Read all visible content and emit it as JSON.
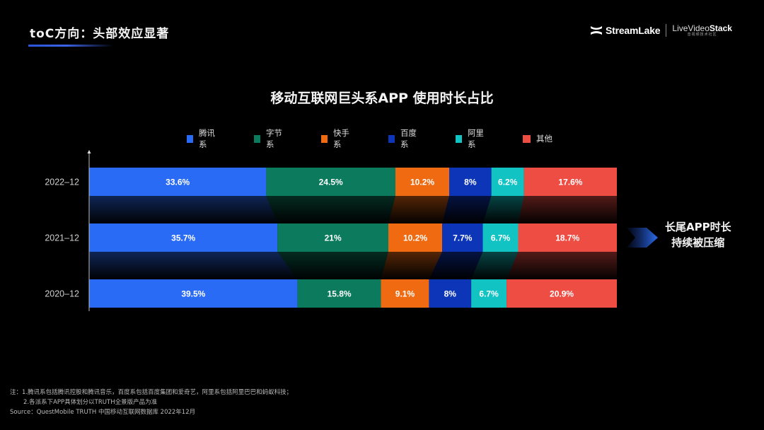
{
  "header": {
    "page_title": "toC方向：头部效应显著",
    "logo_streamlake": "StreamLake",
    "logo_livevideostack_prefix": "LiveVideo",
    "logo_livevideostack_suffix": "Stack",
    "logo_livevideostack_sub": "音视频技术社区"
  },
  "colors": {
    "腾讯系": "#2a6bf5",
    "字节系": "#0b7a5d",
    "快手系": "#f06a12",
    "百度系": "#0c35b8",
    "阿里系": "#12c3c3",
    "其他": "#ee4d44"
  },
  "chart_data": {
    "type": "bar",
    "orientation": "horizontal",
    "stacked": true,
    "normalized": true,
    "title": "移动互联网巨头系APP 使用时长占比",
    "xlabel": "",
    "ylabel": "",
    "xlim": [
      0,
      100
    ],
    "legend_position": "top",
    "categories": [
      "2022-12",
      "2021-12",
      "2020-12"
    ],
    "category_labels": [
      "2022–12",
      "2021–12",
      "2020–12"
    ],
    "series": [
      {
        "name": "腾讯系",
        "values": [
          33.6,
          35.7,
          39.5
        ],
        "labels": [
          "33.6%",
          "35.7%",
          "39.5%"
        ]
      },
      {
        "name": "字节系",
        "values": [
          24.5,
          21,
          15.8
        ],
        "labels": [
          "24.5%",
          "21%",
          "15.8%"
        ]
      },
      {
        "name": "快手系",
        "values": [
          10.2,
          10.2,
          9.1
        ],
        "labels": [
          "10.2%",
          "10.2%",
          "9.1%"
        ]
      },
      {
        "name": "百度系",
        "values": [
          8,
          7.7,
          8
        ],
        "labels": [
          "8%",
          "7.7%",
          "8%"
        ]
      },
      {
        "name": "阿里系",
        "values": [
          6.2,
          6.7,
          6.7
        ],
        "labels": [
          "6.2%",
          "6.7%",
          "6.7%"
        ]
      },
      {
        "name": "其他",
        "values": [
          17.6,
          18.7,
          20.9
        ],
        "labels": [
          "17.6%",
          "18.7%",
          "20.9%"
        ]
      }
    ]
  },
  "annotation": {
    "line1": "长尾APP时长",
    "line2": "持续被压缩"
  },
  "footnotes": {
    "note1": "注：1.腾讯系包括腾讯控股和腾讯音乐，百度系包括百度集团和爱奇艺，阿里系包括阿里巴巴和蚂蚁科技；",
    "note2": "2.各派系下APP具体划分以TRUTH全景版产品为准",
    "source": "Source：QuestMobile TRUTH 中国移动互联网数据库 2022年12月"
  }
}
